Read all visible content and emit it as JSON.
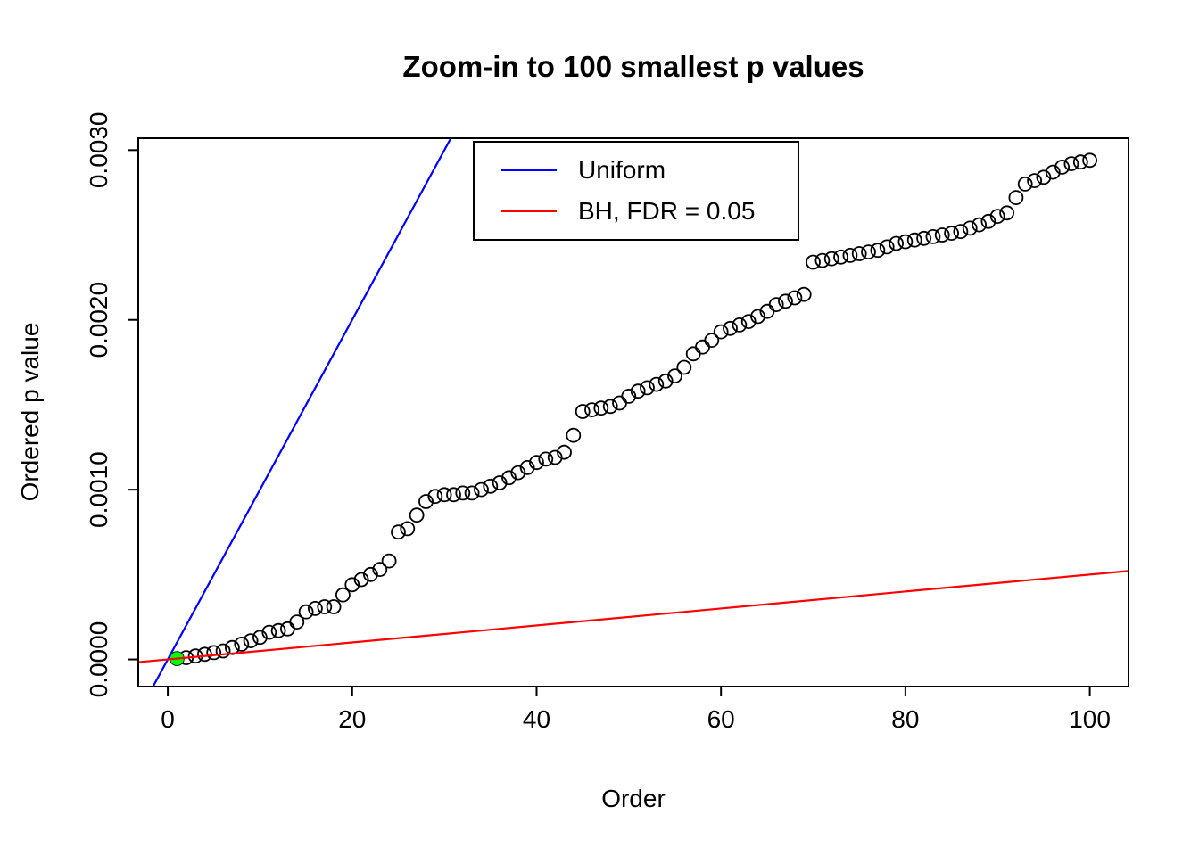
{
  "chart_data": {
    "type": "scatter",
    "title": "Zoom-in to 100 smallest p values",
    "xlabel": "Order",
    "ylabel": "Ordered p value",
    "xlim": [
      -3.2,
      104.2
    ],
    "ylim": [
      -0.00016,
      0.00307
    ],
    "grid": false,
    "x_ticks": [
      0,
      20,
      40,
      60,
      80,
      100
    ],
    "x_tick_labels": [
      "0",
      "20",
      "40",
      "60",
      "80",
      "100"
    ],
    "y_ticks": [
      0.0,
      0.001,
      0.002,
      0.003
    ],
    "y_tick_labels": [
      "0.0000",
      "0.0010",
      "0.0020",
      "0.0030"
    ],
    "legend": {
      "position": "top-center",
      "entries": [
        {
          "label": "Uniform",
          "color": "#0000FF"
        },
        {
          "label": "BH, FDR = 0.05",
          "color": "#FF0000"
        }
      ]
    },
    "series": [
      {
        "name": "ordered-p-values",
        "kind": "points",
        "marker": "open-circle",
        "color": "#000000",
        "x_start": 1,
        "x_step": 1,
        "y": [
          5e-06,
          1e-05,
          2e-05,
          3e-05,
          4e-05,
          5e-05,
          7e-05,
          9e-05,
          0.00011,
          0.00013,
          0.00016,
          0.00017,
          0.00018,
          0.00022,
          0.00028,
          0.0003,
          0.00031,
          0.00031,
          0.00038,
          0.00044,
          0.00047,
          0.0005,
          0.00053,
          0.00058,
          0.00075,
          0.00077,
          0.00085,
          0.00093,
          0.00096,
          0.00097,
          0.00097,
          0.00098,
          0.00098,
          0.001,
          0.00102,
          0.00104,
          0.00107,
          0.0011,
          0.00113,
          0.00116,
          0.00118,
          0.00119,
          0.00122,
          0.00132,
          0.00146,
          0.00147,
          0.00148,
          0.00149,
          0.00151,
          0.00155,
          0.00158,
          0.0016,
          0.00162,
          0.00164,
          0.00167,
          0.00172,
          0.0018,
          0.00184,
          0.00188,
          0.00193,
          0.00195,
          0.00197,
          0.00199,
          0.00202,
          0.00205,
          0.00209,
          0.00211,
          0.00213,
          0.00215,
          0.00234,
          0.00235,
          0.00236,
          0.00237,
          0.00238,
          0.00239,
          0.0024,
          0.00241,
          0.00243,
          0.00245,
          0.00246,
          0.00247,
          0.00248,
          0.00249,
          0.0025,
          0.00251,
          0.00252,
          0.00254,
          0.00256,
          0.00258,
          0.00261,
          0.00263,
          0.00272,
          0.0028,
          0.00282,
          0.00284,
          0.00287,
          0.0029,
          0.00292,
          0.00293,
          0.00294
        ]
      },
      {
        "name": "uniform-line",
        "kind": "line",
        "color": "#0000FF",
        "slope": 0.0001,
        "intercept": 0
      },
      {
        "name": "bh-line",
        "kind": "line",
        "color": "#FF0000",
        "slope": 5e-06,
        "intercept": 0
      },
      {
        "name": "bh-significant-point",
        "kind": "points",
        "marker": "filled-circle",
        "color": "#00FF00",
        "x": [
          1
        ],
        "y": [
          5e-06
        ]
      }
    ]
  }
}
